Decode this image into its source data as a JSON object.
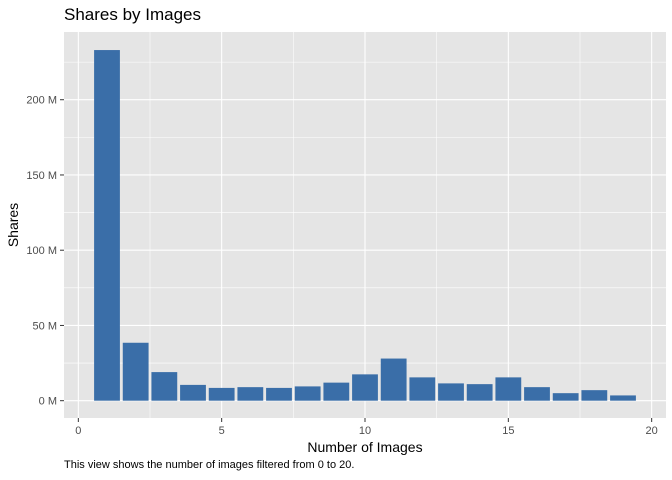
{
  "chart_data": {
    "type": "bar",
    "title": "Shares by Images",
    "xlabel": "Number of Images",
    "ylabel": "Shares",
    "caption": "This view shows the number of images filtered from 0 to 20.",
    "x": [
      1,
      2,
      3,
      4,
      5,
      6,
      7,
      8,
      9,
      10,
      11,
      12,
      13,
      14,
      15,
      16,
      17,
      18,
      19
    ],
    "values": [
      233,
      38.5,
      19,
      10.5,
      8.5,
      9,
      8.5,
      9.5,
      12,
      17.5,
      28,
      15.5,
      11.5,
      11,
      15.5,
      9,
      5,
      7,
      3.5
    ],
    "value_unit": "M",
    "xlim": [
      -0.5,
      20.5
    ],
    "ylim": [
      -11.5,
      245
    ],
    "x_ticks": [
      0,
      5,
      10,
      15,
      20
    ],
    "y_ticks": [
      0,
      50,
      100,
      150,
      200
    ],
    "y_tick_labels": [
      "0 M",
      "50 M",
      "100 M",
      "150 M",
      "200 M"
    ],
    "grid": true,
    "legend": "none",
    "colors": {
      "bar": "#3a6ea8",
      "panel": "#e5e5e5",
      "grid": "#ffffff"
    }
  }
}
